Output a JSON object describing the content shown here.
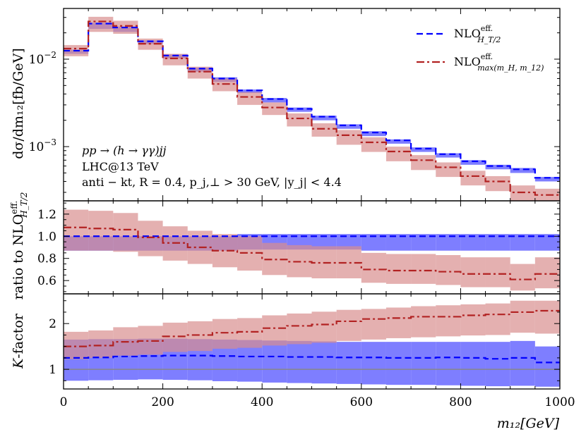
{
  "chart_data": {
    "type": "step",
    "x_label": "m₁₂[GeV]",
    "x_ticks": [
      "0",
      "200",
      "400",
      "600",
      "800",
      "1000"
    ],
    "xlim": [
      0,
      1000
    ],
    "bin_edges": [
      0,
      50,
      100,
      150,
      200,
      250,
      300,
      350,
      400,
      450,
      500,
      550,
      600,
      650,
      700,
      750,
      800,
      850,
      900,
      950,
      1000
    ],
    "legend": {
      "position": "top-right",
      "entries": [
        {
          "label": "NLO^eff._{H_T/2}",
          "main": "NLO",
          "sup": "eff.",
          "sub": "H_T/2",
          "color": "#0000ff",
          "dash": "dashed"
        },
        {
          "label": "NLO^eff._{max(m_H,m_12)}",
          "main": "NLO",
          "sup": "eff.",
          "sub": "max(m_H, m_12)",
          "color": "#b22222",
          "dash": "dashdot"
        }
      ]
    },
    "annotations": [
      "pp → (h → γγ)jj",
      "LHC@13 TeV",
      "anti − kt, R = 0.4, p_j,⊥ > 30 GeV, |y_j| < 4.4"
    ],
    "panels": [
      {
        "name": "distribution",
        "ylabel": "dσ/dm₁₂[fb/GeV]",
        "yscale": "log",
        "ylim": [
          0.00024,
          0.038
        ],
        "y_ticks": [
          {
            "value": 0.01,
            "base": "10",
            "exp": "−2"
          },
          {
            "value": 0.001,
            "base": "10",
            "exp": "−3"
          }
        ],
        "series": [
          {
            "name": "NLO^eff._{H_T/2}",
            "color": "#0000ff",
            "band_color": "#7777ff",
            "values": [
              0.0125,
              0.0255,
              0.023,
              0.016,
              0.011,
              0.0078,
              0.006,
              0.0044,
              0.0035,
              0.0027,
              0.0022,
              0.00175,
              0.00145,
              0.00118,
              0.00095,
              0.00082,
              0.00068,
              0.0006,
              0.00055,
              0.00044
            ],
            "band_low": [
              0.0115,
              0.0222,
              0.0205,
              0.0149,
              0.0102,
              0.0072,
              0.0055,
              0.0041,
              0.0032,
              0.0025,
              0.002,
              0.0016,
              0.00132,
              0.00108,
              0.00087,
              0.00075,
              0.00062,
              0.00055,
              0.0005,
              0.0004
            ],
            "band_high": [
              0.0128,
              0.026,
              0.0236,
              0.0164,
              0.0113,
              0.008,
              0.0062,
              0.0045,
              0.0036,
              0.0028,
              0.00226,
              0.0018,
              0.0015,
              0.00121,
              0.00098,
              0.00084,
              0.0007,
              0.00062,
              0.00057,
              0.00045
            ]
          },
          {
            "name": "NLO^eff._{max(m_H,m_12)}",
            "color": "#b22222",
            "band_color": "#d98f8f",
            "values": [
              0.0132,
              0.027,
              0.024,
              0.015,
              0.0102,
              0.0072,
              0.0052,
              0.0037,
              0.0028,
              0.0021,
              0.0016,
              0.00135,
              0.00112,
              0.00088,
              0.0007,
              0.00058,
              0.00046,
              0.0004,
              0.0003,
              0.00028
            ],
            "band_low": [
              0.0108,
              0.0205,
              0.0195,
              0.0128,
              0.0085,
              0.006,
              0.0043,
              0.003,
              0.0023,
              0.0017,
              0.0013,
              0.00105,
              0.00087,
              0.00068,
              0.00054,
              0.00045,
              0.00036,
              0.00031,
              0.00024,
              0.00022
            ],
            "band_high": [
              0.0145,
              0.0305,
              0.0275,
              0.0172,
              0.0115,
              0.0082,
              0.006,
              0.0042,
              0.0032,
              0.0024,
              0.00185,
              0.00155,
              0.00128,
              0.001,
              0.0008,
              0.00066,
              0.00053,
              0.00046,
              0.00036,
              0.00033
            ]
          }
        ]
      },
      {
        "name": "ratio",
        "ylabel": "ratio to NLO^eff._{H_T/2}",
        "ylabel_prefix": "ratio to NLO",
        "ylabel_sup": "eff.",
        "ylabel_sub": "H_T/2",
        "yscale": "linear",
        "ylim": [
          0.48,
          1.32
        ],
        "y_ticks": [
          {
            "value": 0.6,
            "label": "0.6"
          },
          {
            "value": 0.8,
            "label": "0.8"
          },
          {
            "value": 1.0,
            "label": "1.0"
          },
          {
            "value": 1.2,
            "label": "1.2"
          }
        ],
        "series": [
          {
            "name": "NLO^eff._{H_T/2}",
            "color": "#0000ff",
            "band_color": "#7777ff",
            "values": [
              1,
              1,
              1,
              1,
              1,
              1,
              1,
              1,
              1,
              1,
              1,
              1,
              1,
              1,
              1,
              1,
              1,
              1,
              1,
              1
            ],
            "band_low": [
              0.87,
              0.87,
              0.87,
              0.87,
              0.87,
              0.87,
              0.87,
              0.88,
              0.88,
              0.88,
              0.88,
              0.88,
              0.87,
              0.87,
              0.87,
              0.87,
              0.87,
              0.87,
              0.87,
              0.87
            ],
            "band_high": [
              1,
              1,
              1,
              1,
              1,
              1,
              1,
              1.02,
              1.02,
              1.02,
              1.02,
              1.02,
              1.02,
              1.02,
              1.02,
              1.02,
              1.02,
              1.02,
              1.02,
              1.02
            ]
          },
          {
            "name": "NLO^eff._{max(m_H,m_12)}",
            "color": "#b22222",
            "band_color": "#d98f8f",
            "values": [
              1.08,
              1.07,
              1.06,
              0.99,
              0.94,
              0.9,
              0.87,
              0.85,
              0.79,
              0.77,
              0.76,
              0.76,
              0.7,
              0.69,
              0.69,
              0.68,
              0.66,
              0.66,
              0.61,
              0.66
            ],
            "band_low": [
              0.87,
              0.87,
              0.86,
              0.82,
              0.78,
              0.75,
              0.72,
              0.69,
              0.65,
              0.63,
              0.62,
              0.62,
              0.58,
              0.57,
              0.57,
              0.56,
              0.54,
              0.54,
              0.51,
              0.53
            ],
            "band_high": [
              1.24,
              1.23,
              1.21,
              1.14,
              1.09,
              1.05,
              1.02,
              1.0,
              0.94,
              0.92,
              0.91,
              0.91,
              0.85,
              0.84,
              0.84,
              0.83,
              0.81,
              0.81,
              0.75,
              0.81
            ]
          }
        ]
      },
      {
        "name": "kfactor",
        "ylabel": "K-factor",
        "ylabel_main": "K",
        "ylabel_rest": "-factor",
        "yscale": "linear",
        "ylim": [
          0.57,
          2.65
        ],
        "y_ticks": [
          {
            "value": 1,
            "label": "1"
          },
          {
            "value": 2,
            "label": "2"
          }
        ],
        "reference_line": {
          "value": 1,
          "color": "#888888"
        },
        "series": [
          {
            "name": "NLO^eff._{H_T/2}",
            "color": "#0000ff",
            "band_color": "#7777ff",
            "values": [
              1.25,
              1.26,
              1.28,
              1.29,
              1.3,
              1.3,
              1.29,
              1.28,
              1.28,
              1.27,
              1.27,
              1.26,
              1.26,
              1.25,
              1.25,
              1.26,
              1.25,
              1.23,
              1.25,
              1.15
            ],
            "band_low": [
              0.75,
              0.76,
              0.77,
              0.78,
              0.77,
              0.76,
              0.74,
              0.73,
              0.71,
              0.7,
              0.69,
              0.68,
              0.67,
              0.66,
              0.66,
              0.65,
              0.64,
              0.63,
              0.64,
              0.62
            ],
            "band_high": [
              1.65,
              1.66,
              1.66,
              1.67,
              1.67,
              1.66,
              1.65,
              1.64,
              1.63,
              1.62,
              1.61,
              1.6,
              1.6,
              1.6,
              1.6,
              1.6,
              1.6,
              1.6,
              1.62,
              1.5
            ]
          },
          {
            "name": "NLO^eff._{max(m_H,m_12)}",
            "color": "#b22222",
            "band_color": "#d98f8f",
            "values": [
              1.5,
              1.52,
              1.6,
              1.62,
              1.72,
              1.75,
              1.8,
              1.82,
              1.9,
              1.95,
              1.98,
              2.05,
              2.1,
              2.12,
              2.15,
              2.15,
              2.18,
              2.2,
              2.25,
              2.28
            ],
            "band_low": [
              1.22,
              1.25,
              1.3,
              1.32,
              1.38,
              1.4,
              1.45,
              1.47,
              1.52,
              1.55,
              1.58,
              1.62,
              1.65,
              1.68,
              1.7,
              1.72,
              1.74,
              1.75,
              1.8,
              1.78
            ],
            "band_high": [
              1.82,
              1.85,
              1.92,
              1.95,
              2.02,
              2.05,
              2.1,
              2.12,
              2.18,
              2.22,
              2.26,
              2.3,
              2.32,
              2.35,
              2.38,
              2.4,
              2.42,
              2.44,
              2.5,
              2.5
            ]
          }
        ]
      }
    ]
  }
}
